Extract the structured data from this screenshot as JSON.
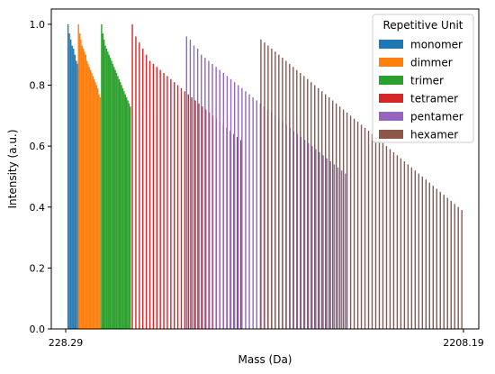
{
  "chart_data": {
    "type": "bar",
    "xlabel": "Mass (Da)",
    "ylabel": "Intensity (a.u.)",
    "xticks": [
      "228.29",
      "2208.19"
    ],
    "xlim": [
      228.29,
      2208.19
    ],
    "ylim": [
      0,
      1.05
    ],
    "yticks": [
      "0.0",
      "0.2",
      "0.4",
      "0.6",
      "0.8",
      "1.0"
    ],
    "grid": false,
    "legend": {
      "title": "Repetitive Unit",
      "position": "top-right"
    },
    "series": [
      {
        "name": "monomer",
        "color": "#1f77b4",
        "x_start": 240.0,
        "x_end": 295.0,
        "values": [
          1.0,
          0.97,
          0.95,
          0.93,
          0.92,
          0.9,
          0.88,
          0.87,
          0.85
        ]
      },
      {
        "name": "dimmer",
        "color": "#ff7f0e",
        "x_start": 292.0,
        "x_end": 400.0,
        "values": [
          1.0,
          0.97,
          0.95,
          0.93,
          0.92,
          0.91,
          0.9,
          0.88,
          0.87,
          0.86,
          0.85,
          0.84,
          0.83,
          0.82,
          0.81,
          0.8,
          0.79,
          0.77,
          0.76
        ]
      },
      {
        "name": "trimer",
        "color": "#2ca02c",
        "x_start": 407.0,
        "x_end": 550.0,
        "values": [
          1.0,
          0.97,
          0.95,
          0.93,
          0.92,
          0.91,
          0.9,
          0.89,
          0.88,
          0.87,
          0.86,
          0.85,
          0.84,
          0.83,
          0.82,
          0.81,
          0.8,
          0.79,
          0.78,
          0.77,
          0.76,
          0.75,
          0.74,
          0.73
        ]
      },
      {
        "name": "tetramer",
        "color": "#d62728",
        "x_start": 560.0,
        "x_end": 1100.0,
        "values": [
          1.0,
          0.96,
          0.94,
          0.92,
          0.9,
          0.88,
          0.87,
          0.86,
          0.85,
          0.84,
          0.83,
          0.82,
          0.81,
          0.8,
          0.79,
          0.78,
          0.77,
          0.76,
          0.75,
          0.74,
          0.73,
          0.72,
          0.71,
          0.7,
          0.69,
          0.68,
          0.67,
          0.66,
          0.65,
          0.64,
          0.63,
          0.62
        ]
      },
      {
        "name": "pentamer",
        "color": "#9467bd",
        "x_start": 830.0,
        "x_end": 1620.0,
        "values": [
          0.96,
          0.95,
          0.93,
          0.92,
          0.9,
          0.89,
          0.88,
          0.87,
          0.86,
          0.85,
          0.84,
          0.83,
          0.82,
          0.81,
          0.8,
          0.79,
          0.78,
          0.77,
          0.76,
          0.75,
          0.74,
          0.73,
          0.72,
          0.71,
          0.7,
          0.69,
          0.68,
          0.67,
          0.66,
          0.65,
          0.64,
          0.63,
          0.62,
          0.61,
          0.6,
          0.59,
          0.58,
          0.57,
          0.56,
          0.55,
          0.54,
          0.53,
          0.52,
          0.51
        ]
      },
      {
        "name": "hexamer",
        "color": "#8c564b",
        "x_start": 1200.0,
        "x_end": 2200.0,
        "values": [
          0.95,
          0.94,
          0.93,
          0.92,
          0.91,
          0.9,
          0.89,
          0.88,
          0.87,
          0.86,
          0.85,
          0.84,
          0.83,
          0.82,
          0.81,
          0.8,
          0.79,
          0.78,
          0.77,
          0.76,
          0.75,
          0.74,
          0.73,
          0.72,
          0.71,
          0.7,
          0.69,
          0.68,
          0.67,
          0.66,
          0.65,
          0.64,
          0.63,
          0.62,
          0.61,
          0.6,
          0.59,
          0.58,
          0.57,
          0.56,
          0.55,
          0.54,
          0.53,
          0.52,
          0.51,
          0.5,
          0.49,
          0.48,
          0.47,
          0.46,
          0.45,
          0.44,
          0.43,
          0.42,
          0.41,
          0.4,
          0.39
        ]
      }
    ]
  }
}
